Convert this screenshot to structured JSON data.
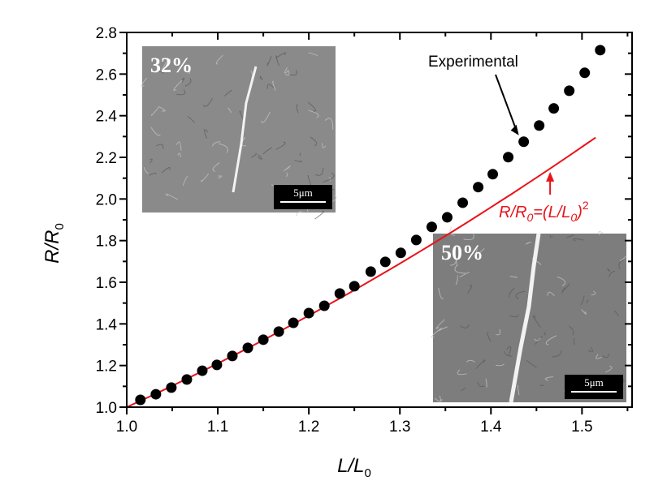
{
  "chart_data": {
    "type": "scatter",
    "title": "",
    "xlabel": "L/L",
    "xlabel_sub": "0",
    "ylabel": "R/R",
    "ylabel_sub": "0",
    "xlim": [
      1.0,
      1.555
    ],
    "ylim": [
      1.0,
      2.8
    ],
    "x_ticks": [
      1.0,
      1.1,
      1.2,
      1.3,
      1.4,
      1.5
    ],
    "x_tick_labels": [
      "1.0",
      "1.1",
      "1.2",
      "1.3",
      "1.4",
      "1.5"
    ],
    "y_ticks": [
      1.0,
      1.2,
      1.4,
      1.6,
      1.8,
      2.0,
      2.2,
      2.4,
      2.6,
      2.8
    ],
    "y_tick_labels": [
      "1.0",
      "1.2",
      "1.4",
      "1.6",
      "1.8",
      "2.0",
      "2.2",
      "2.4",
      "2.6",
      "2.8"
    ],
    "grid": false,
    "series": [
      {
        "name": "Experimental",
        "kind": "scatter",
        "color": "#000000",
        "x": [
          1.015,
          1.032,
          1.049,
          1.066,
          1.083,
          1.099,
          1.116,
          1.133,
          1.15,
          1.167,
          1.183,
          1.2,
          1.217,
          1.234,
          1.25,
          1.268,
          1.284,
          1.301,
          1.318,
          1.335,
          1.352,
          1.369,
          1.386,
          1.402,
          1.419,
          1.436,
          1.453,
          1.469,
          1.486,
          1.503,
          1.52
        ],
        "y": [
          1.035,
          1.062,
          1.094,
          1.133,
          1.175,
          1.203,
          1.246,
          1.285,
          1.324,
          1.363,
          1.405,
          1.452,
          1.487,
          1.546,
          1.581,
          1.651,
          1.698,
          1.741,
          1.803,
          1.866,
          1.912,
          1.982,
          2.057,
          2.119,
          2.201,
          2.275,
          2.353,
          2.435,
          2.52,
          2.606,
          2.715
        ]
      },
      {
        "name": "R/R0=(L/L0)^2",
        "kind": "line",
        "color": "#e8141a",
        "x_range": [
          1.0,
          1.515
        ],
        "exponent": 2
      }
    ],
    "annotations": {
      "experimental": {
        "text": "Experimental",
        "arrow_to": [
          1.436,
          2.275
        ]
      },
      "model": {
        "text_R": "R/R",
        "sub0": "0",
        "text_eq": "=(L/L",
        "text_close": ")",
        "sup": "2",
        "arrow_to": [
          1.465,
          2.146
        ]
      }
    },
    "insets": [
      {
        "label": "32%",
        "scale_bar": "5μm"
      },
      {
        "label": "50%",
        "scale_bar": "5μm"
      }
    ]
  }
}
